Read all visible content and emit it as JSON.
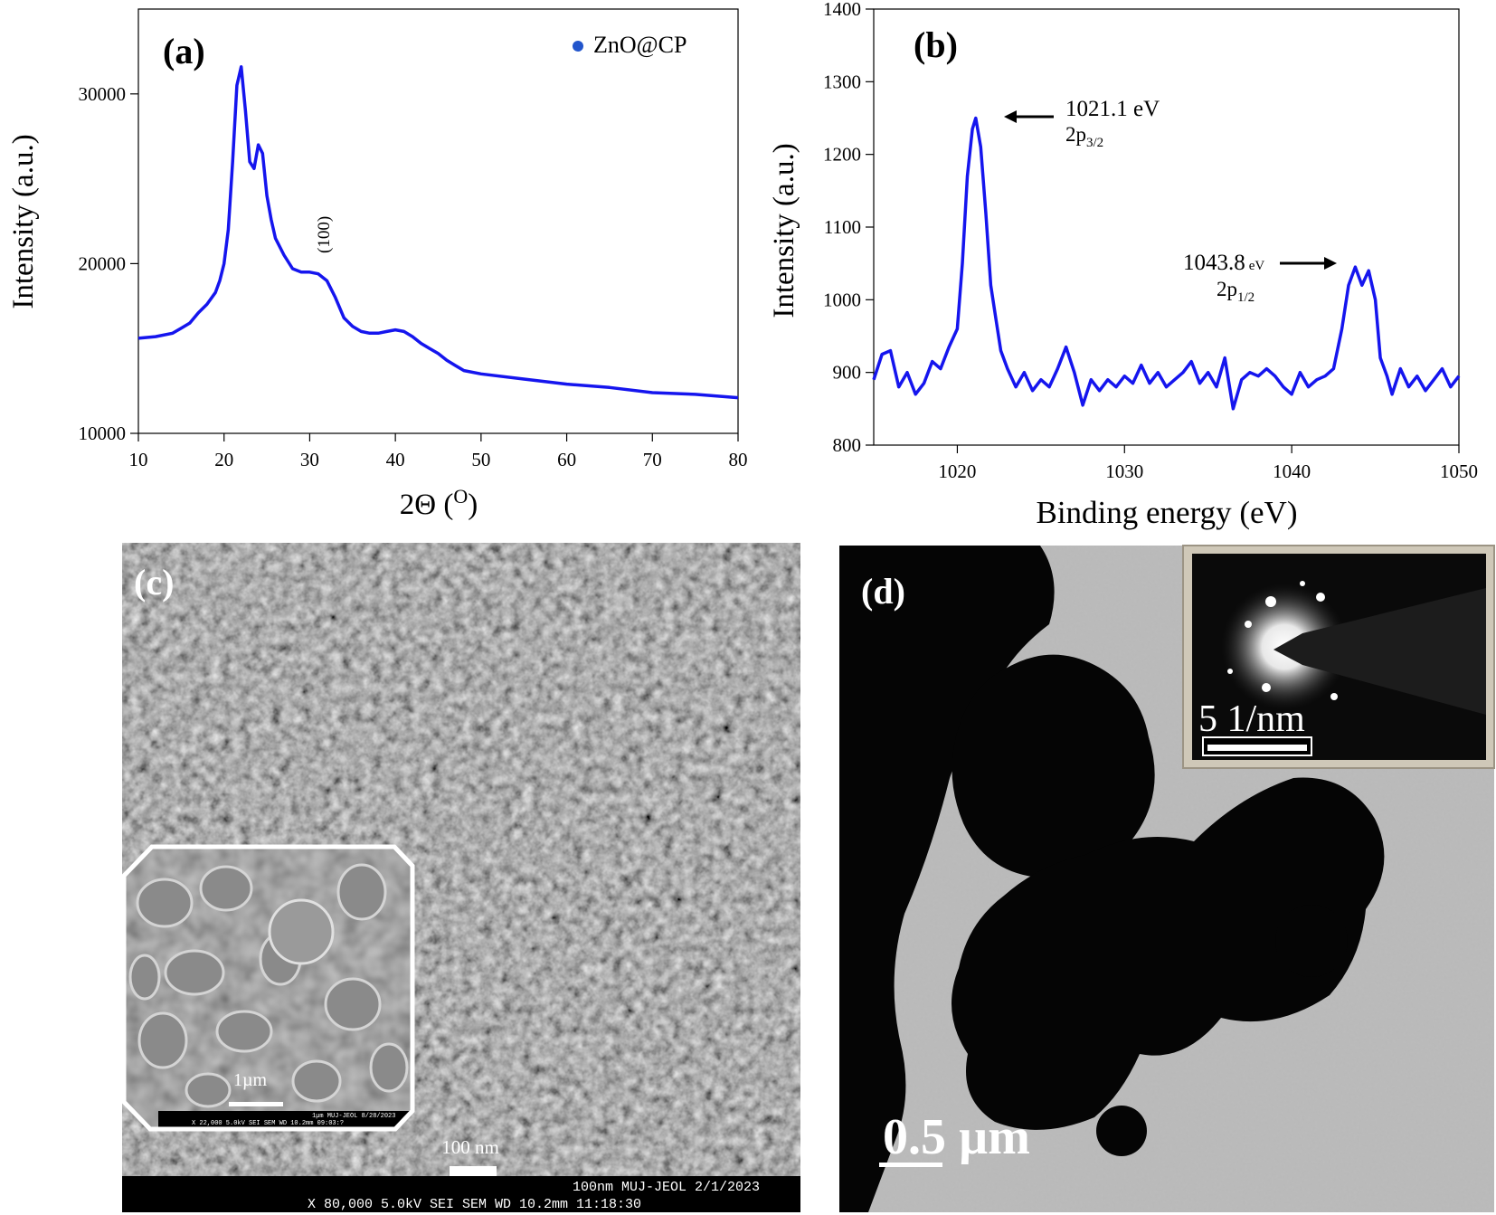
{
  "chart_data": [
    {
      "panel": "(a)",
      "type": "line",
      "xlabel": "2Θ (",
      "xlabel_sup": "O",
      "xlabel_close": ")",
      "ylabel": "Intensity (a.u.)",
      "xlim": [
        10,
        80
      ],
      "ylim": [
        10000,
        35000
      ],
      "xticks": [
        "10",
        "20",
        "30",
        "40",
        "50",
        "60",
        "70",
        "80"
      ],
      "yticks": [
        "10000",
        "20000",
        "30000"
      ],
      "legend": "ZnO@CP",
      "legend_position": "top-right",
      "annotations": [
        {
          "text": "(100)",
          "x": 31.5,
          "y": 20700
        }
      ],
      "series": [
        {
          "name": "ZnO@CP",
          "color": "#1515ee",
          "x": [
            10,
            12,
            14,
            15,
            16,
            17,
            18,
            19,
            19.5,
            20,
            20.5,
            21,
            21.5,
            22,
            22.5,
            23,
            23.5,
            24,
            24.5,
            25,
            25.5,
            26,
            27,
            28,
            29,
            30,
            31,
            32,
            33,
            34,
            35,
            36,
            37,
            38,
            39,
            40,
            41,
            42,
            43,
            44,
            45,
            46,
            47,
            48,
            50,
            55,
            60,
            65,
            70,
            75,
            80
          ],
          "y": [
            15600,
            15700,
            15900,
            16200,
            16500,
            17100,
            17600,
            18300,
            19000,
            20000,
            22000,
            26000,
            30500,
            31600,
            29000,
            26000,
            25600,
            27000,
            26500,
            24000,
            22600,
            21500,
            20500,
            19700,
            19500,
            19500,
            19400,
            19000,
            18000,
            16800,
            16300,
            16000,
            15900,
            15900,
            16000,
            16100,
            16000,
            15700,
            15300,
            15000,
            14700,
            14300,
            14000,
            13700,
            13500,
            13200,
            12900,
            12700,
            12400,
            12300,
            12100
          ]
        }
      ]
    },
    {
      "panel": "(b)",
      "type": "line",
      "xlabel": "Binding energy (eV)",
      "ylabel": "Intensity (a.u.)",
      "xlim": [
        1015,
        1050
      ],
      "ylim": [
        800,
        1400
      ],
      "xticks": [
        "1020",
        "1030",
        "1040",
        "1050"
      ],
      "yticks": [
        "800",
        "900",
        "1000",
        "1100",
        "1200",
        "1300",
        "1400"
      ],
      "annotations": [
        {
          "text": "1021.1 eV",
          "sub_prefix": "2p",
          "sub": "3/2"
        },
        {
          "text": "1043.8",
          "small": "eV",
          "sub_prefix": "2p",
          "sub": "1/2"
        }
      ],
      "series": [
        {
          "name": "",
          "color": "#1515ee",
          "x": [
            1015,
            1015.5,
            1016,
            1016.5,
            1017,
            1017.5,
            1018,
            1018.5,
            1019,
            1019.5,
            1020,
            1020.3,
            1020.6,
            1020.9,
            1021.1,
            1021.4,
            1021.7,
            1022,
            1022.3,
            1022.6,
            1023,
            1023.5,
            1024,
            1024.5,
            1025,
            1025.5,
            1026,
            1026.5,
            1027,
            1027.5,
            1028,
            1028.5,
            1029,
            1029.5,
            1030,
            1030.5,
            1031,
            1031.5,
            1032,
            1032.5,
            1033,
            1033.5,
            1034,
            1034.5,
            1035,
            1035.5,
            1036,
            1036.5,
            1037,
            1037.5,
            1038,
            1038.5,
            1039,
            1039.5,
            1040,
            1040.5,
            1041,
            1041.5,
            1042,
            1042.5,
            1043,
            1043.4,
            1043.8,
            1044.2,
            1044.6,
            1045,
            1045.3,
            1045.7,
            1046,
            1046.5,
            1047,
            1047.5,
            1048,
            1048.5,
            1049,
            1049.5,
            1050
          ],
          "y": [
            890,
            925,
            930,
            880,
            900,
            870,
            885,
            915,
            905,
            935,
            960,
            1050,
            1170,
            1235,
            1250,
            1210,
            1120,
            1020,
            975,
            930,
            905,
            880,
            900,
            875,
            890,
            880,
            905,
            935,
            900,
            855,
            890,
            875,
            890,
            880,
            895,
            885,
            910,
            885,
            900,
            880,
            890,
            900,
            915,
            885,
            900,
            880,
            920,
            850,
            890,
            900,
            895,
            905,
            895,
            880,
            870,
            900,
            880,
            890,
            895,
            905,
            960,
            1020,
            1045,
            1020,
            1040,
            1000,
            920,
            895,
            870,
            905,
            880,
            895,
            875,
            890,
            905,
            880,
            895
          ]
        }
      ]
    }
  ],
  "panel_c": {
    "label": "(c)",
    "scale_bar": "100 nm",
    "inset_scale": "1µm",
    "inset_footer": "X 22,000   5.0kV  SEI        SEM     WD 10.2mm 09:03:?",
    "inset_footer_right": "1µm  MUJ-JEOL 8/28/2023",
    "info_top": "100nm MUJ-JEOL 2/1/2023",
    "info_bottom": "X 80,000      5.0kV   SEI           SEM    WD 10.2mm 11:18:30"
  },
  "panel_d": {
    "label": "(d)",
    "scale_bar": "0.5 µm",
    "inset_scale": "5  1/nm"
  }
}
